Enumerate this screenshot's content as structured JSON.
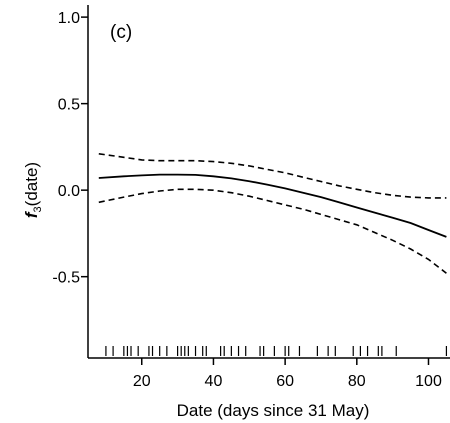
{
  "chart_data": {
    "type": "line",
    "panel_label": "(c)",
    "xlabel": "Date (days since 31 May)",
    "ylabel": {
      "symbol": "f",
      "subscript": "3",
      "suffix": "(date)"
    },
    "xlim": [
      5,
      106
    ],
    "ylim": [
      -0.97,
      1.07
    ],
    "x_ticks": [
      20,
      40,
      60,
      80,
      100
    ],
    "x_tick_labels": [
      "20",
      "40",
      "60",
      "80",
      "100"
    ],
    "y_ticks": [
      1.0,
      0.5,
      0.0,
      -0.5
    ],
    "y_tick_labels": [
      "1.0",
      "0.5",
      "0.0",
      "-0.5"
    ],
    "grid": false,
    "legend": "none",
    "series": [
      {
        "style": "solid",
        "x": [
          8,
          15,
          20,
          25,
          30,
          35,
          40,
          45,
          50,
          55,
          60,
          65,
          70,
          75,
          80,
          85,
          90,
          95,
          100,
          105
        ],
        "y": [
          0.07,
          0.08,
          0.085,
          0.09,
          0.09,
          0.088,
          0.08,
          0.068,
          0.052,
          0.032,
          0.01,
          -0.015,
          -0.04,
          -0.07,
          -0.1,
          -0.13,
          -0.16,
          -0.19,
          -0.23,
          -0.27
        ]
      },
      {
        "style": "dashed",
        "x": [
          8,
          15,
          20,
          25,
          30,
          35,
          40,
          45,
          50,
          55,
          60,
          65,
          70,
          75,
          80,
          85,
          90,
          95,
          100,
          105
        ],
        "y": [
          0.21,
          0.19,
          0.175,
          0.17,
          0.17,
          0.17,
          0.165,
          0.155,
          0.14,
          0.12,
          0.1,
          0.075,
          0.05,
          0.025,
          0.005,
          -0.015,
          -0.03,
          -0.04,
          -0.045,
          -0.045
        ]
      },
      {
        "style": "dashed",
        "x": [
          8,
          15,
          20,
          25,
          30,
          35,
          40,
          45,
          50,
          55,
          60,
          65,
          70,
          75,
          80,
          85,
          90,
          95,
          100,
          105
        ],
        "y": [
          -0.07,
          -0.04,
          -0.02,
          -0.005,
          0.005,
          0.005,
          0.0,
          -0.015,
          -0.035,
          -0.06,
          -0.085,
          -0.11,
          -0.14,
          -0.17,
          -0.2,
          -0.245,
          -0.29,
          -0.34,
          -0.4,
          -0.48
        ]
      }
    ],
    "rug": [
      10,
      12,
      15,
      16,
      17,
      19,
      22,
      23,
      25,
      27,
      30,
      31,
      32,
      33,
      35,
      37,
      38,
      42,
      43,
      45,
      47,
      49,
      53,
      54,
      57,
      60,
      61,
      64,
      69,
      72,
      74,
      79,
      81,
      83,
      86,
      87,
      91,
      105
    ],
    "colors": {
      "line": "#000000",
      "axis": "#000000"
    }
  }
}
